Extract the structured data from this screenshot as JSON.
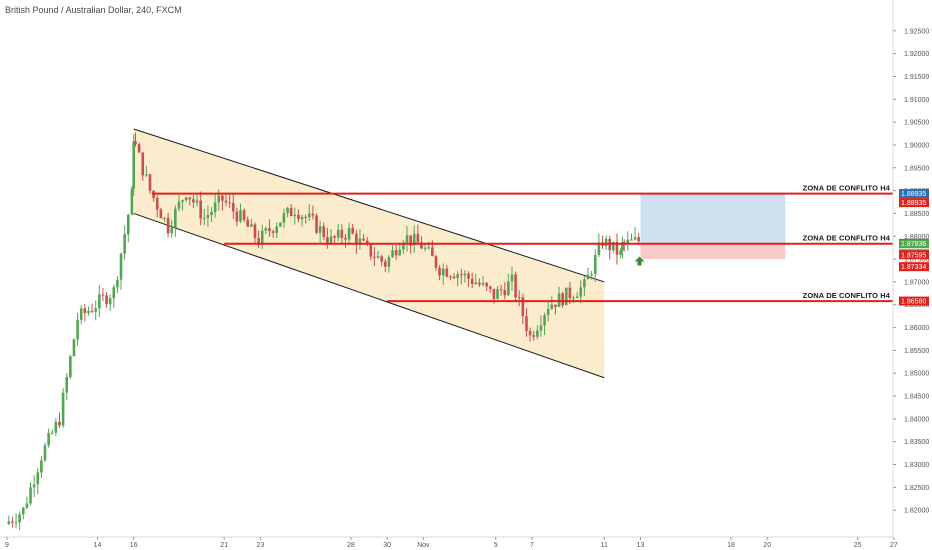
{
  "chart_title": "British Pound / Australian Dollar, 240, FXCM",
  "colors": {
    "background": "#ffffff",
    "up_candle": "#53a553",
    "down_candle": "#c94f4f",
    "channel_fill": "#fbe9c6",
    "channel_line": "#1a1a1a",
    "zone_line": "#e0201a",
    "target_box": "#cfe0f1",
    "stop_box": "#f8caca",
    "arrow": "#3b8a3b",
    "axis_text": "#555555"
  },
  "chart_data": {
    "type": "candlestick",
    "symbol": "GBPAUD",
    "timeframe": "240",
    "source": "FXCM",
    "ylim": [
      1.815,
      1.93
    ],
    "y_ticks": [
      "1.92500",
      "1.92000",
      "1.91500",
      "1.91000",
      "1.90500",
      "1.90000",
      "1.89500",
      "1.89000",
      "1.88500",
      "1.88000",
      "1.87500",
      "1.87000",
      "1.86500",
      "1.86000",
      "1.85500",
      "1.85000",
      "1.84500",
      "1.84000",
      "1.83500",
      "1.83000",
      "1.82500",
      "1.82000"
    ],
    "x_ticks": [
      "9",
      "14",
      "16",
      "21",
      "23",
      "28",
      "30",
      "Nov",
      "5",
      "7",
      "11",
      "13",
      "18",
      "20",
      "25",
      "27"
    ],
    "x_range": [
      "2018-10-09",
      "2018-11-28"
    ],
    "x_tick_dates": [
      "2018-10-09",
      "2018-10-14",
      "2018-10-16",
      "2018-10-21",
      "2018-10-23",
      "2018-10-28",
      "2018-10-30",
      "2018-11-01",
      "2018-11-05",
      "2018-11-07",
      "2018-11-11",
      "2018-11-13",
      "2018-11-18",
      "2018-11-20",
      "2018-11-25",
      "2018-11-27"
    ],
    "candles_path": [
      [
        "2018-10-09",
        1.817
      ],
      [
        "2018-10-10",
        1.82
      ],
      [
        "2018-10-11",
        1.832
      ],
      [
        "2018-10-12",
        1.84
      ],
      [
        "2018-10-13",
        1.862
      ],
      [
        "2018-10-14",
        1.865
      ],
      [
        "2018-10-15",
        1.868
      ],
      [
        "2018-10-16",
        1.889
      ],
      [
        "2018-10-16",
        1.902
      ],
      [
        "2018-10-17",
        1.89
      ],
      [
        "2018-10-18",
        1.882
      ],
      [
        "2018-10-19",
        1.89
      ],
      [
        "2018-10-20",
        1.884
      ],
      [
        "2018-10-21",
        1.888
      ],
      [
        "2018-10-22",
        1.884
      ],
      [
        "2018-10-23",
        1.879
      ],
      [
        "2018-10-24",
        1.883
      ],
      [
        "2018-10-25",
        1.886
      ],
      [
        "2018-10-26",
        1.883
      ],
      [
        "2018-10-27",
        1.879
      ],
      [
        "2018-10-28",
        1.881
      ],
      [
        "2018-10-29",
        1.877
      ],
      [
        "2018-10-30",
        1.874
      ],
      [
        "2018-10-31",
        1.88
      ],
      [
        "2018-11-01",
        1.878
      ],
      [
        "2018-11-02",
        1.873
      ],
      [
        "2018-11-03",
        1.872
      ],
      [
        "2018-11-04",
        1.87
      ],
      [
        "2018-11-05",
        1.867
      ],
      [
        "2018-11-06",
        1.87
      ],
      [
        "2018-11-07",
        1.858
      ],
      [
        "2018-11-08",
        1.865
      ],
      [
        "2018-11-09",
        1.867
      ],
      [
        "2018-11-10",
        1.869
      ],
      [
        "2018-11-11",
        1.879
      ],
      [
        "2018-11-12",
        1.876
      ],
      [
        "2018-11-12",
        1.878
      ],
      [
        "2018-11-13",
        1.879
      ]
    ],
    "annotations": [
      {
        "type": "hline",
        "price": 1.88935,
        "from": "2018-10-17",
        "to": "right",
        "label": "ZONA DE CONFLITO H4"
      },
      {
        "type": "hline",
        "price": 1.87836,
        "from": "2018-10-21",
        "to": "right",
        "label": "ZONA DE CONFLITO H4"
      },
      {
        "type": "hline",
        "price": 1.8658,
        "from": "2018-10-30",
        "to": "right",
        "label": "ZONA DE CONFLITO H4"
      },
      {
        "type": "channel",
        "upper": [
          [
            "2018-10-16",
            1.9035
          ],
          [
            "2018-11-11",
            1.87
          ]
        ],
        "lower": [
          [
            "2018-10-16",
            1.885
          ],
          [
            "2018-11-11",
            1.849
          ]
        ]
      },
      {
        "type": "position",
        "entry": 1.87836,
        "target": 1.88935,
        "stop": 1.875,
        "from": "2018-11-13",
        "to": "2018-11-21"
      },
      {
        "type": "arrow_up",
        "date": "2018-11-13",
        "price": 1.876
      }
    ],
    "price_tags": [
      {
        "value": "1.88935",
        "color": "#2c6fb5"
      },
      {
        "value": "1.88935",
        "color": "#e0201a"
      },
      {
        "value": "1.87844",
        "color": "#4a4a4a"
      },
      {
        "value": "1.87836",
        "color": "#53a553"
      },
      {
        "value": "02:21:37",
        "color": "#53a553"
      },
      {
        "value": "1.87595",
        "color": "#e0201a"
      },
      {
        "value": "1.87334",
        "color": "#e0201a"
      },
      {
        "value": "1.86580",
        "color": "#e0201a"
      }
    ]
  }
}
